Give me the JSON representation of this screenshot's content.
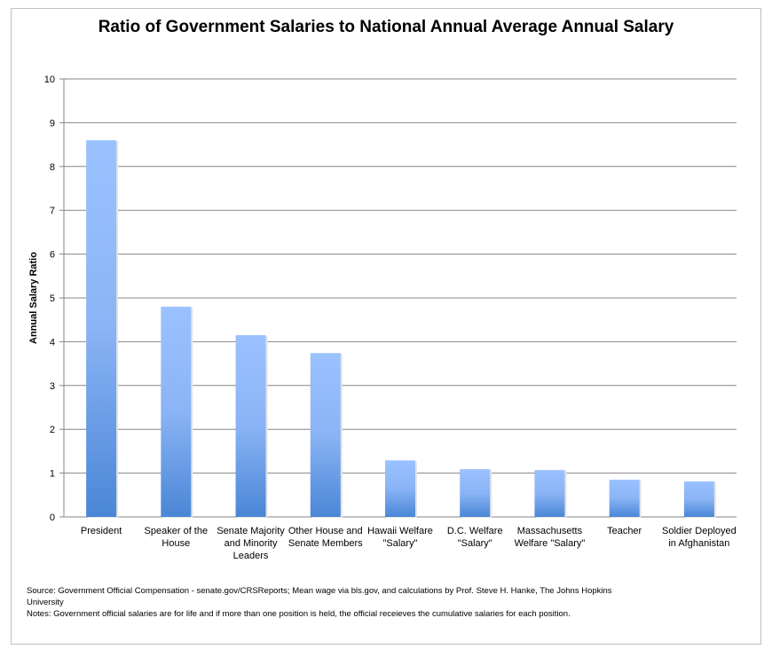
{
  "chart_data": {
    "type": "bar",
    "title": "Ratio of Government Salaries to National Annual Average Annual Salary",
    "ylabel": "Annual Salary Ratio",
    "xlabel": "",
    "ylim": [
      0,
      10
    ],
    "yticks": [
      "0",
      "1",
      "2",
      "3",
      "4",
      "5",
      "6",
      "7",
      "8",
      "9",
      "10"
    ],
    "grid": true,
    "categories": [
      "President",
      "Speaker of the House",
      "Senate Majority and Minority Leaders",
      "Other House and Senate Members",
      "Hawaii Welfare \"Salary\"",
      "D.C. Welfare \"Salary\"",
      "Massachusetts Welfare \"Salary\"",
      "Teacher",
      "Soldier Deployed in Afghanistan"
    ],
    "values": [
      8.6,
      4.8,
      4.15,
      3.74,
      1.29,
      1.09,
      1.07,
      0.85,
      0.81
    ],
    "bar_color_top": "#9bc2ff",
    "bar_color_bottom": "#4a86d6"
  },
  "notes": {
    "source": "Source: Government Official Compensation - senate.gov/CRSReports; Mean wage via bls.gov, and calculations by Prof. Steve H. Hanke, The Johns Hopkins University",
    "notes": "Notes: Government official salaries are for life and if more than one position is held, the official receieves the cumulative salaries for each position."
  }
}
